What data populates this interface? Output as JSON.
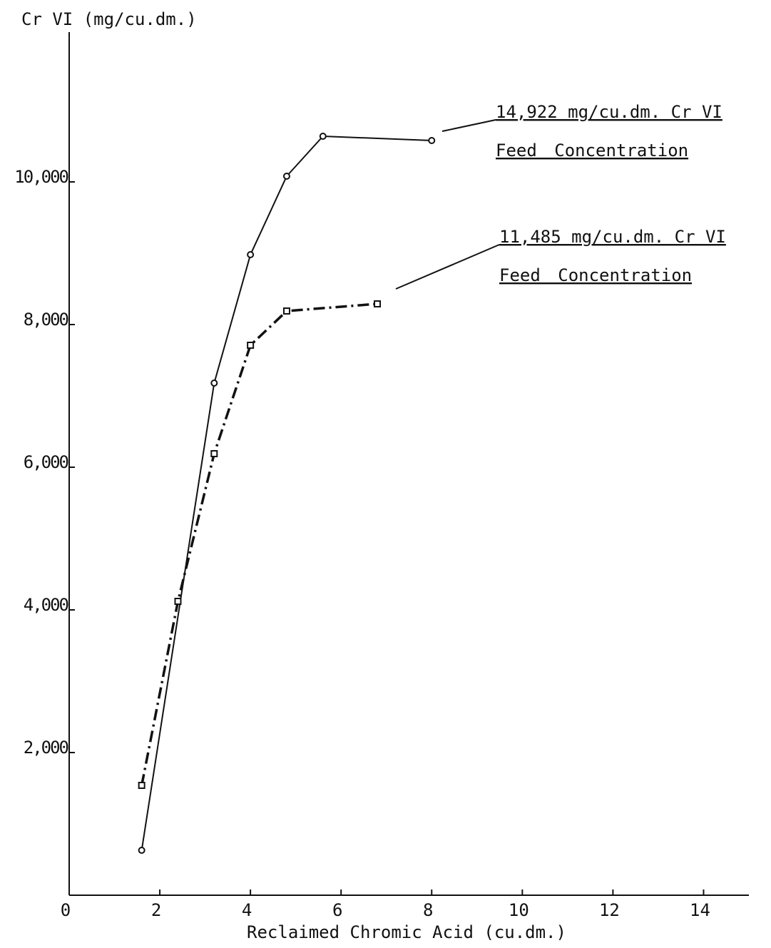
{
  "chart_data": {
    "type": "line",
    "y_label": "Cr VI (mg/cu.dm.)",
    "x_label": "Reclaimed Chromic Acid (cu.dm.)",
    "xlim": [
      0,
      15
    ],
    "ylim": [
      0,
      12000
    ],
    "xticks": [
      0,
      2,
      4,
      6,
      8,
      10,
      12,
      14
    ],
    "yticks": [
      {
        "value": 2000,
        "label": "2,000"
      },
      {
        "value": 4000,
        "label": "4,000"
      },
      {
        "value": 6000,
        "label": "6,000"
      },
      {
        "value": 8000,
        "label": "8,000"
      },
      {
        "value": 10000,
        "label": "10,000"
      }
    ],
    "grid": false,
    "series": [
      {
        "name": "14,922 mg/cu.dm. Cr VI",
        "note": "Feed Concentration",
        "color": "#111111",
        "line_style": "solid",
        "marker": "circle",
        "x": [
          1.6,
          3.2,
          4.0,
          4.8,
          5.6,
          8.0
        ],
        "values": [
          630,
          7180,
          8980,
          10080,
          10640,
          10580
        ]
      },
      {
        "name": "11,485 mg/cu.dm. Cr VI",
        "note": "Feed Concentration",
        "color": "#111111",
        "line_style": "dashdot",
        "marker": "square",
        "x": [
          1.6,
          2.4,
          3.2,
          4.0,
          4.8,
          6.8
        ],
        "values": [
          1540,
          4120,
          6190,
          7710,
          8190,
          8290
        ]
      }
    ]
  }
}
